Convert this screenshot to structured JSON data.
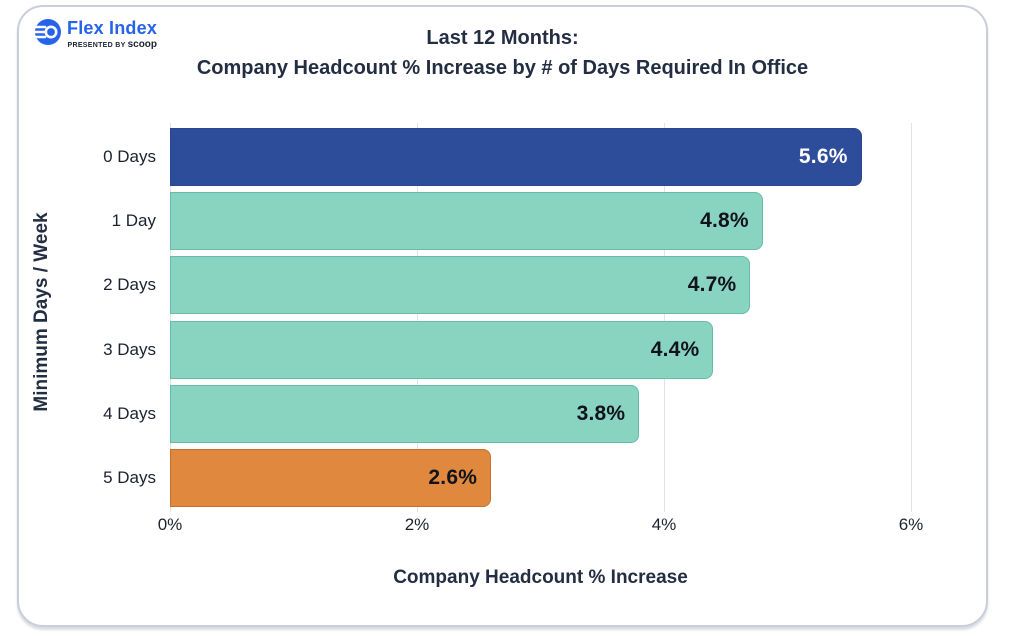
{
  "logo": {
    "brand": "Flex Index",
    "presented_by": "PRESENTED BY",
    "presenter": "scoop",
    "brand_color": "#2563eb"
  },
  "title": {
    "line1": "Last 12 Months:",
    "line2": "Company Headcount % Increase by # of Days Required In Office"
  },
  "chart_data": {
    "type": "bar",
    "orientation": "horizontal",
    "title": "Last 12 Months: Company Headcount % Increase by # of Days Required In Office",
    "categories": [
      "0 Days",
      "1 Day",
      "2 Days",
      "3 Days",
      "4 Days",
      "5 Days"
    ],
    "values": [
      5.6,
      4.8,
      4.7,
      4.4,
      3.8,
      2.6
    ],
    "value_labels": [
      "5.6%",
      "4.8%",
      "4.7%",
      "4.4%",
      "3.8%",
      "2.6%"
    ],
    "bar_colors": [
      "#2d4d9b",
      "#89d4c0",
      "#89d4c0",
      "#89d4c0",
      "#89d4c0",
      "#e1883f"
    ],
    "bar_border_colors": [
      "#2a4690",
      "#66bca6",
      "#66bca6",
      "#66bca6",
      "#66bca6",
      "#c4702e"
    ],
    "value_label_colors": [
      "#ffffff",
      "#10131a",
      "#10131a",
      "#10131a",
      "#10131a",
      "#10131a"
    ],
    "xlabel": "Company Headcount % Increase",
    "ylabel": "Minimum Days / Week",
    "xlim": [
      0,
      6
    ],
    "xticks": [
      {
        "value": 0,
        "label": "0%"
      },
      {
        "value": 2,
        "label": "2%"
      },
      {
        "value": 4,
        "label": "4%"
      },
      {
        "value": 6,
        "label": "6%"
      }
    ],
    "grid": "vertical",
    "gridline_color": "#e0e3e9",
    "legend": "none"
  }
}
